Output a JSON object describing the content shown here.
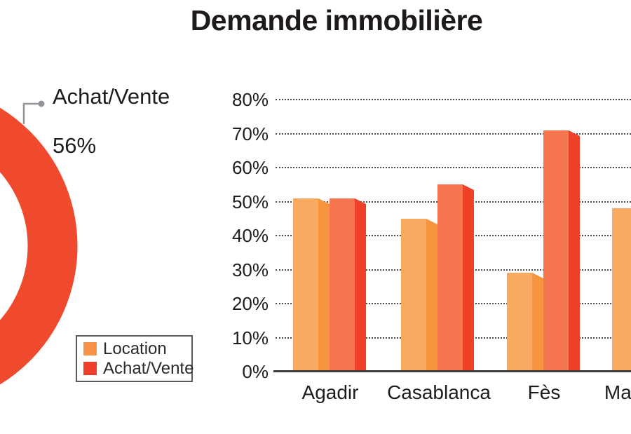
{
  "title": "Demande immobilière",
  "donut": {
    "callout_line1": "Achat/Vente",
    "callout_line2": "56%",
    "ring_color": "#EF4A2D",
    "callout_color": "#939598"
  },
  "legend": {
    "items": [
      {
        "label": "Location",
        "color": "#F7944A"
      },
      {
        "label": "Achat/Vente",
        "color": "#EE3E2C"
      }
    ]
  },
  "bar_colors": {
    "location_front": "#FAA961",
    "location_side": "#F7953F",
    "achat_front": "#F5764F",
    "achat_side": "#EE4128"
  },
  "chart_data": [
    {
      "type": "pie",
      "subtype": "donut",
      "partially_visible": true,
      "slices": [
        {
          "label": "Achat/Vente",
          "value_pct": 56,
          "color": "#EF4A2D"
        }
      ],
      "callout": "Achat/Vente 56%",
      "legend_entries": [
        "Location",
        "Achat/Vente"
      ],
      "legend_position": "bottom-left"
    },
    {
      "type": "bar",
      "title": "Demande immobilière",
      "categories": [
        "Agadir",
        "Casablanca",
        "Fès",
        "Marrakech"
      ],
      "categories_note_last_clipped": "Ma",
      "series": [
        {
          "name": "Location",
          "values": [
            51,
            45,
            29,
            48
          ]
        },
        {
          "name": "Achat/Vente",
          "values": [
            51,
            55,
            71,
            null
          ]
        }
      ],
      "y_tick_labels": [
        "0%",
        "10%",
        "20%",
        "30%",
        "40%",
        "50%",
        "60%",
        "70%",
        "80%"
      ],
      "ylim": [
        0,
        80
      ],
      "grid": "horizontal-dotted",
      "xlabel": "",
      "ylabel": ""
    }
  ]
}
